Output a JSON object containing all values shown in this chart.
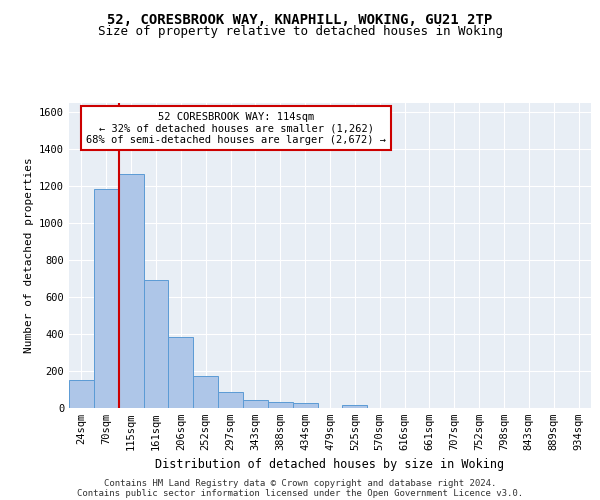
{
  "title1": "52, CORESBROOK WAY, KNAPHILL, WOKING, GU21 2TP",
  "title2": "Size of property relative to detached houses in Woking",
  "xlabel": "Distribution of detached houses by size in Woking",
  "ylabel": "Number of detached properties",
  "bar_categories": [
    "24sqm",
    "70sqm",
    "115sqm",
    "161sqm",
    "206sqm",
    "252sqm",
    "297sqm",
    "343sqm",
    "388sqm",
    "434sqm",
    "479sqm",
    "525sqm",
    "570sqm",
    "616sqm",
    "661sqm",
    "707sqm",
    "752sqm",
    "798sqm",
    "843sqm",
    "889sqm",
    "934sqm"
  ],
  "bar_values": [
    150,
    1180,
    1262,
    690,
    380,
    170,
    85,
    38,
    30,
    22,
    0,
    15,
    0,
    0,
    0,
    0,
    0,
    0,
    0,
    0,
    0
  ],
  "bar_color": "#aec6e8",
  "bar_edge_color": "#5b9bd5",
  "annotation_line1": "52 CORESBROOK WAY: 114sqm",
  "annotation_line2": "← 32% of detached houses are smaller (1,262)",
  "annotation_line3": "68% of semi-detached houses are larger (2,672) →",
  "annotation_box_color": "#ffffff",
  "annotation_box_edge_color": "#cc0000",
  "vline_color": "#cc0000",
  "ylim": [
    0,
    1650
  ],
  "yticks": [
    0,
    200,
    400,
    600,
    800,
    1000,
    1200,
    1400,
    1600
  ],
  "bg_color": "#e8eef5",
  "grid_color": "#ffffff",
  "footer_line1": "Contains HM Land Registry data © Crown copyright and database right 2024.",
  "footer_line2": "Contains public sector information licensed under the Open Government Licence v3.0.",
  "title1_fontsize": 10,
  "title2_fontsize": 9,
  "xlabel_fontsize": 8.5,
  "ylabel_fontsize": 8,
  "tick_fontsize": 7.5,
  "annot_fontsize": 7.5,
  "footer_fontsize": 6.5
}
